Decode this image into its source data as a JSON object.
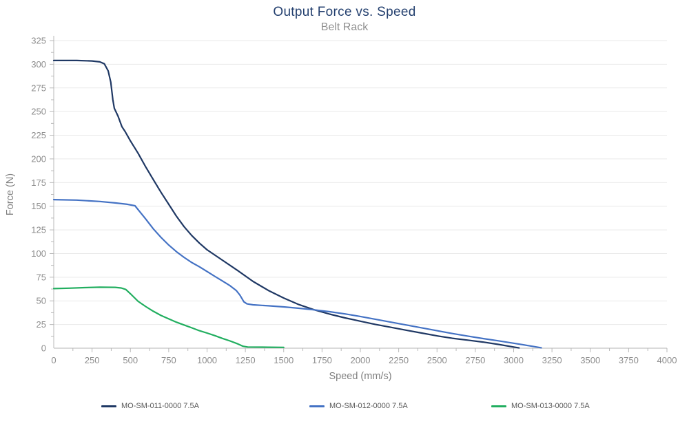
{
  "page": {
    "title": "Output Force vs. Speed",
    "subtitle": "Belt Rack"
  },
  "colors": {
    "background": "#ffffff",
    "title": "#24406f",
    "subtitle": "#8f8f8f",
    "tick_label": "#8c8c8c",
    "axis_title": "#7f7f7f",
    "axis_line": "#c4c4c4",
    "tick_mark": "#b8b8b8",
    "gridline": "#e9e9e9",
    "legend_text": "#595959",
    "series_navy": "#1f3864",
    "series_blue": "#4472c4",
    "series_green": "#21ae5f"
  },
  "chart_data": {
    "type": "line",
    "title": "Output Force vs. Speed",
    "subtitle": "Belt Rack",
    "xlabel": "Speed (mm/s)",
    "ylabel": "Force (N)",
    "xlim": [
      0,
      4000
    ],
    "ylim": [
      0,
      325
    ],
    "x_major_step": 250,
    "x_minor_step": 125,
    "y_major_step": 25,
    "y_minor_step": 12.5,
    "x_ticks": [
      0,
      250,
      500,
      750,
      1000,
      1250,
      1500,
      1750,
      2000,
      2250,
      2500,
      2750,
      3000,
      3250,
      3500,
      3750,
      4000
    ],
    "y_ticks": [
      0,
      25,
      50,
      75,
      100,
      125,
      150,
      175,
      200,
      225,
      250,
      275,
      300,
      325
    ],
    "grid": "horizontal-major-only",
    "legend_position": "bottom",
    "series": [
      {
        "name": "MO-SM-011-0000 7.5A",
        "color": "#1f3864",
        "points": [
          [
            0,
            304
          ],
          [
            150,
            304
          ],
          [
            250,
            303.5
          ],
          [
            300,
            302.5
          ],
          [
            330,
            300.5
          ],
          [
            355,
            293
          ],
          [
            372,
            281
          ],
          [
            385,
            263
          ],
          [
            395,
            253.5
          ],
          [
            420,
            245
          ],
          [
            445,
            234
          ],
          [
            465,
            229
          ],
          [
            500,
            219
          ],
          [
            550,
            206
          ],
          [
            600,
            191.5
          ],
          [
            650,
            178
          ],
          [
            700,
            164.5
          ],
          [
            750,
            152
          ],
          [
            800,
            139.5
          ],
          [
            850,
            128.5
          ],
          [
            900,
            119
          ],
          [
            950,
            111
          ],
          [
            1000,
            104
          ],
          [
            1100,
            93
          ],
          [
            1200,
            82
          ],
          [
            1300,
            70.5
          ],
          [
            1400,
            61
          ],
          [
            1500,
            53
          ],
          [
            1600,
            46
          ],
          [
            1700,
            40.5
          ],
          [
            1800,
            36
          ],
          [
            1900,
            32
          ],
          [
            2000,
            28.5
          ],
          [
            2100,
            25
          ],
          [
            2200,
            22
          ],
          [
            2300,
            19
          ],
          [
            2400,
            16
          ],
          [
            2500,
            13
          ],
          [
            2600,
            10.5
          ],
          [
            2700,
            8.5
          ],
          [
            2800,
            6.5
          ],
          [
            2900,
            4
          ],
          [
            3000,
            1.2
          ],
          [
            3035,
            0.3
          ]
        ]
      },
      {
        "name": "MO-SM-012-0000 7.5A",
        "color": "#4472c4",
        "points": [
          [
            0,
            157
          ],
          [
            150,
            156.5
          ],
          [
            300,
            155
          ],
          [
            400,
            153.5
          ],
          [
            480,
            152
          ],
          [
            530,
            150.5
          ],
          [
            560,
            144.5
          ],
          [
            600,
            136.5
          ],
          [
            650,
            126
          ],
          [
            700,
            117
          ],
          [
            750,
            109
          ],
          [
            800,
            102
          ],
          [
            850,
            96
          ],
          [
            900,
            90.5
          ],
          [
            950,
            86
          ],
          [
            1000,
            81
          ],
          [
            1050,
            76
          ],
          [
            1100,
            71
          ],
          [
            1150,
            66
          ],
          [
            1190,
            61
          ],
          [
            1215,
            56
          ],
          [
            1240,
            49
          ],
          [
            1260,
            46.8
          ],
          [
            1300,
            45.8
          ],
          [
            1400,
            44.8
          ],
          [
            1500,
            43.6
          ],
          [
            1600,
            42.2
          ],
          [
            1700,
            40.5
          ],
          [
            1800,
            38.5
          ],
          [
            1900,
            36.2
          ],
          [
            2000,
            33.5
          ],
          [
            2100,
            30.5
          ],
          [
            2200,
            27.5
          ],
          [
            2300,
            24.5
          ],
          [
            2400,
            21.5
          ],
          [
            2500,
            18.5
          ],
          [
            2600,
            15.5
          ],
          [
            2700,
            12.8
          ],
          [
            2800,
            10.2
          ],
          [
            2900,
            7.8
          ],
          [
            3000,
            5.2
          ],
          [
            3100,
            2.6
          ],
          [
            3180,
            0.4
          ]
        ]
      },
      {
        "name": "MO-SM-013-0000 7.5A",
        "color": "#21ae5f",
        "points": [
          [
            0,
            63
          ],
          [
            100,
            63.4
          ],
          [
            200,
            64
          ],
          [
            300,
            64.4
          ],
          [
            400,
            64.3
          ],
          [
            440,
            63.6
          ],
          [
            470,
            62
          ],
          [
            500,
            57.5
          ],
          [
            550,
            49.5
          ],
          [
            600,
            44
          ],
          [
            650,
            39
          ],
          [
            700,
            34.5
          ],
          [
            750,
            31
          ],
          [
            800,
            27.5
          ],
          [
            850,
            24.5
          ],
          [
            900,
            21.5
          ],
          [
            950,
            18.5
          ],
          [
            1000,
            16
          ],
          [
            1050,
            13.3
          ],
          [
            1100,
            10.3
          ],
          [
            1150,
            7.6
          ],
          [
            1200,
            4.6
          ],
          [
            1235,
            2
          ],
          [
            1265,
            1.2
          ],
          [
            1400,
            1
          ],
          [
            1500,
            0.9
          ]
        ]
      }
    ]
  },
  "legend": {
    "items": [
      {
        "label": "MO-SM-011-0000 7.5A"
      },
      {
        "label": "MO-SM-012-0000 7.5A"
      },
      {
        "label": "MO-SM-013-0000 7.5A"
      }
    ]
  }
}
